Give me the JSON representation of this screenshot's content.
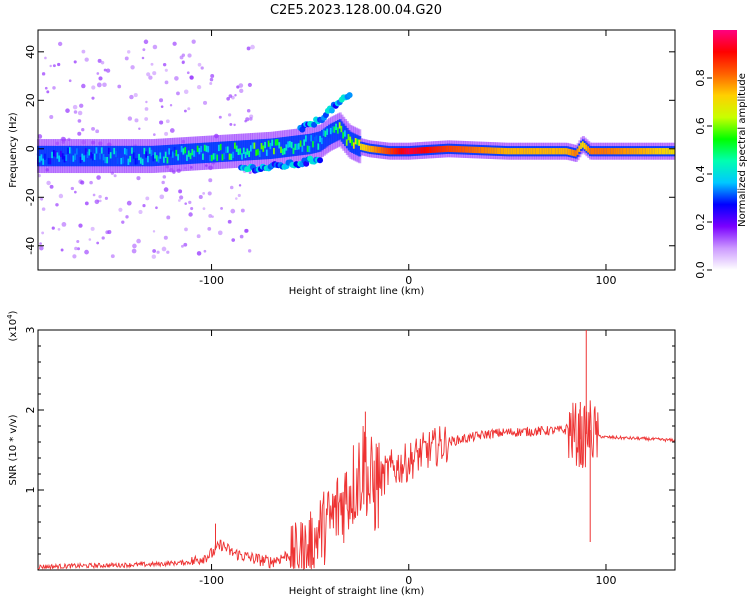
{
  "title": "C2E5.2023.128.00.04.G20",
  "chart_data": [
    {
      "type": "heatmap",
      "name": "spectrogram",
      "xlabel": "Height of straight line (km)",
      "ylabel": "Frequency (Hz)",
      "xlim": [
        -188,
        135
      ],
      "ylim": [
        -50,
        49
      ],
      "xticks": [
        -100,
        0,
        100
      ],
      "xtick_labels": [
        "-100",
        "0",
        "100"
      ],
      "yticks": [
        -40,
        -20,
        0,
        20,
        40
      ],
      "ytick_labels": [
        "-40",
        "-20",
        "0",
        "20",
        "40"
      ],
      "colorbar": {
        "label": "Normalized spectral amplitude",
        "range": [
          0,
          1
        ],
        "ticks": [
          0.0,
          0.2,
          0.4,
          0.6,
          0.8
        ],
        "tick_labels": [
          "0.0",
          "0.2",
          "0.4",
          "0.6",
          "0.8"
        ],
        "colors": [
          "#ffffff",
          "#cc99ff",
          "#7a00ff",
          "#0000ff",
          "#00c8ff",
          "#00ffb0",
          "#00ff00",
          "#c8ff00",
          "#ffd000",
          "#ff6000",
          "#ff0000",
          "#ff0080"
        ]
      },
      "centerline": {
        "x": [
          -188,
          -160,
          -130,
          -110,
          -90,
          -70,
          -60,
          -50,
          -45,
          -40,
          -35,
          -30,
          -25,
          -20,
          -10,
          0,
          20,
          50,
          80,
          85,
          88,
          92,
          100,
          120,
          135
        ],
        "y": [
          -3,
          -3,
          -3,
          -2,
          -1,
          0,
          1,
          2,
          3,
          6,
          8,
          3,
          1,
          0,
          -1,
          -1,
          0,
          -1,
          -1,
          -2,
          2,
          -1,
          -1,
          -1,
          -1
        ],
        "amplitude": [
          0.35,
          0.4,
          0.45,
          0.5,
          0.55,
          0.55,
          0.55,
          0.5,
          0.5,
          0.5,
          0.6,
          0.65,
          0.7,
          0.75,
          0.85,
          0.95,
          0.85,
          0.75,
          0.75,
          0.8,
          0.7,
          0.8,
          0.8,
          0.75,
          0.7
        ]
      },
      "upper_branch": {
        "x": [
          -55,
          -50,
          -45,
          -40,
          -35,
          -30
        ],
        "y": [
          8,
          10,
          12,
          16,
          19,
          22
        ]
      },
      "lower_branch": {
        "x": [
          -85,
          -75,
          -65,
          -55,
          -45
        ],
        "y": [
          -8,
          -8,
          -7,
          -6,
          -4
        ]
      }
    },
    {
      "type": "line",
      "name": "snr",
      "xlabel": "Height of straight line (km)",
      "ylabel": "SNR (10 * v/v)",
      "y_multiplier": "(x10",
      "y_multiplier_exp": "4",
      "y_multiplier_close": ")",
      "xlim": [
        -188,
        135
      ],
      "ylim": [
        0,
        3
      ],
      "xticks": [
        -100,
        0,
        100
      ],
      "xtick_labels": [
        "-100",
        "0",
        "100"
      ],
      "yticks": [
        1,
        2,
        3
      ],
      "ytick_labels": [
        "1",
        "2",
        "3"
      ],
      "series": [
        {
          "color": "#ee3333",
          "x": [
            -188,
            -170,
            -150,
            -130,
            -110,
            -100,
            -95,
            -90,
            -80,
            -70,
            -60,
            -50,
            -45,
            -40,
            -35,
            -30,
            -25,
            -22,
            -20,
            -15,
            -10,
            -5,
            0,
            5,
            10,
            20,
            30,
            40,
            50,
            60,
            70,
            80,
            85,
            88,
            90,
            92,
            95,
            100,
            110,
            120,
            135
          ],
          "y": [
            0.04,
            0.05,
            0.06,
            0.07,
            0.1,
            0.2,
            0.32,
            0.22,
            0.15,
            0.1,
            0.2,
            0.3,
            0.5,
            0.6,
            0.8,
            1.0,
            1.2,
            1.4,
            1.0,
            1.1,
            1.25,
            1.3,
            1.35,
            1.45,
            1.5,
            1.6,
            1.65,
            1.7,
            1.72,
            1.73,
            1.74,
            1.75,
            1.7,
            1.6,
            1.7,
            1.75,
            1.68,
            1.66,
            1.65,
            1.64,
            1.62
          ],
          "spikes": {
            "x": [
              -98,
              -22,
              87,
              90,
              92
            ],
            "y": [
              0.58,
              1.98,
              2.1,
              3.0,
              0.35
            ]
          }
        }
      ]
    }
  ]
}
